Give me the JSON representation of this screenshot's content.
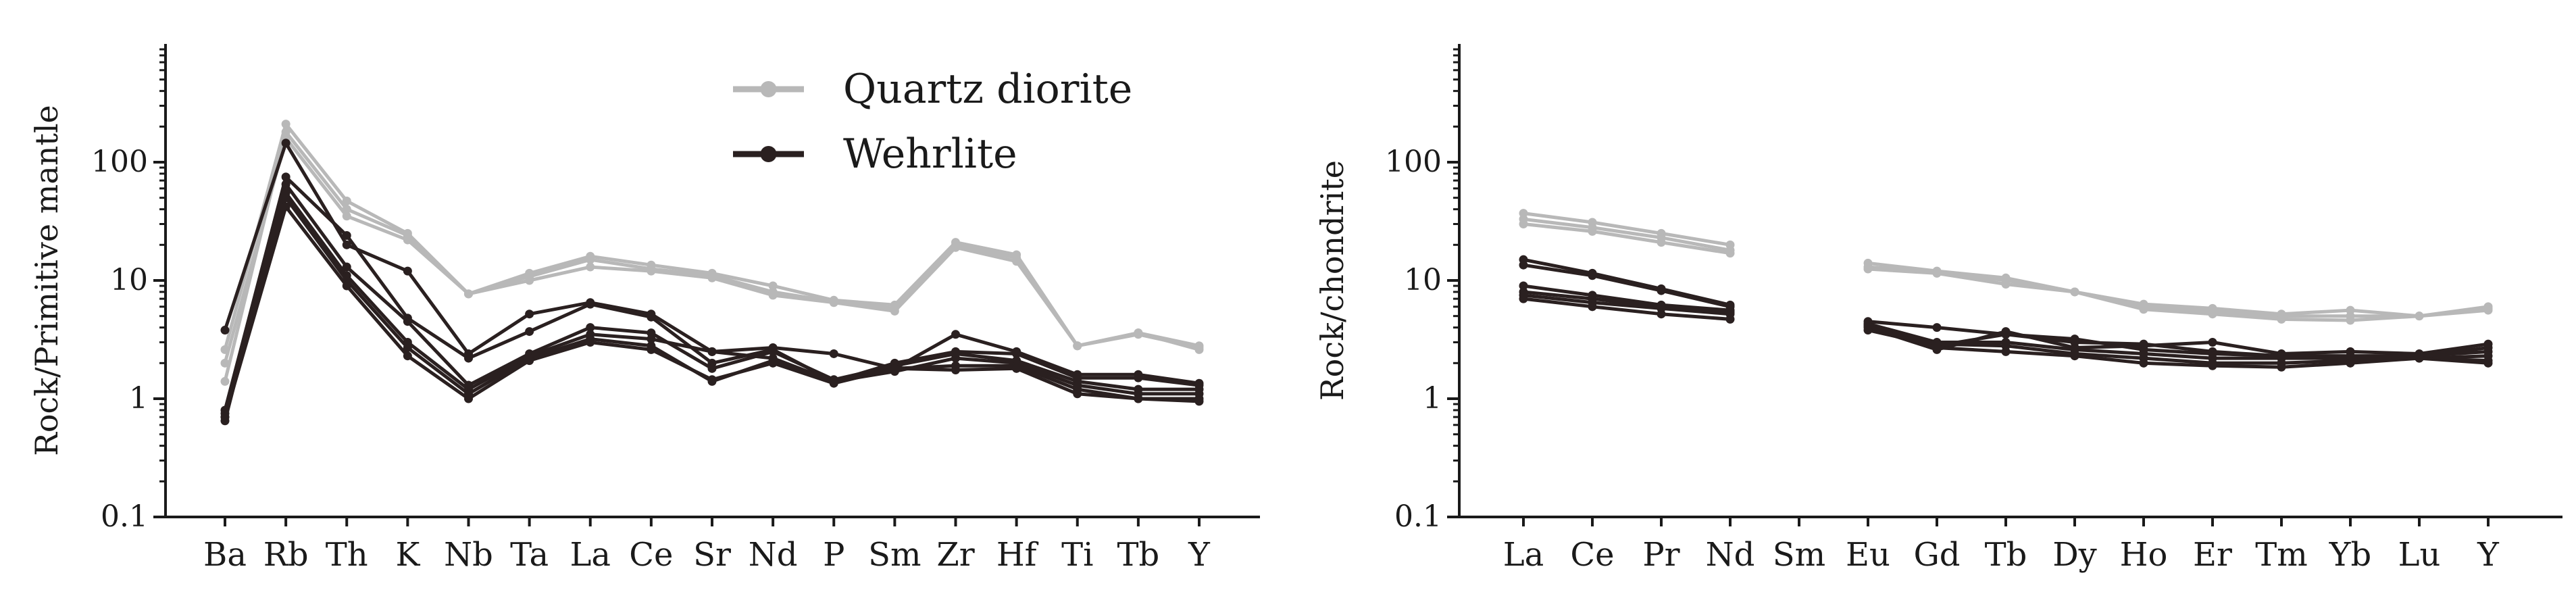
{
  "chart_data": [
    {
      "type": "line",
      "ylabel": "Rock/Primitive mantle",
      "yscale": "log",
      "ylim": [
        0.1,
        1000
      ],
      "yticks": [
        "0.1",
        "1",
        "10",
        "100"
      ],
      "categories": [
        "Ba",
        "Rb",
        "Th",
        "K",
        "Nb",
        "Ta",
        "La",
        "Ce",
        "Sr",
        "Nd",
        "P",
        "Sm",
        "Zr",
        "Hf",
        "Ti",
        "Tb",
        "Y"
      ],
      "legend": [
        {
          "name": "Quartz diorite",
          "color": "#b8b8b8"
        },
        {
          "name": "Wehrlite",
          "color": "#2a2020"
        }
      ],
      "groups": [
        {
          "name": "Quartz diorite",
          "color": "#b8b8b8",
          "samples": [
            [
              2.6,
              210,
              47,
              25,
              7.7,
              11.5,
              16,
              13.5,
              11.5,
              9.0,
              6.8,
              6.2,
              21,
              16.5,
              2.8,
              3.6,
              2.8
            ],
            [
              1.4,
              180,
              40,
              24,
              7.7,
              10.8,
              15,
              12.5,
              11.0,
              8.0,
              6.6,
              5.8,
              20,
              15.5,
              2.8,
              3.6,
              2.6
            ],
            [
              2.0,
              160,
              35,
              22,
              7.7,
              10.0,
              13,
              12.0,
              10.5,
              7.5,
              6.5,
              5.5,
              19,
              14.5,
              2.8,
              3.5,
              2.7
            ]
          ]
        },
        {
          "name": "Wehrlite",
          "color": "#2a2020",
          "samples": [
            [
              3.8,
              145,
              20,
              12,
              2.4,
              5.2,
              6.5,
              5.2,
              2.5,
              2.7,
              2.4,
              1.8,
              3.5,
              2.5,
              1.6,
              1.6,
              1.35
            ],
            [
              0.8,
              75,
              24,
              4.8,
              2.2,
              3.7,
              6.3,
              4.9,
              2.0,
              2.6,
              1.4,
              2.0,
              2.5,
              2.4,
              1.5,
              1.5,
              1.3
            ],
            [
              0.65,
              65,
              13,
              4.5,
              1.3,
              2.4,
              4.0,
              3.6,
              1.8,
              2.5,
              1.45,
              1.9,
              2.4,
              2.1,
              1.4,
              1.2,
              1.2
            ],
            [
              0.75,
              55,
              11,
              3.0,
              1.2,
              2.3,
              3.5,
              3.2,
              2.5,
              2.2,
              1.4,
              1.7,
              2.2,
              2.0,
              1.3,
              1.1,
              1.1
            ],
            [
              0.7,
              50,
              10,
              2.7,
              1.1,
              2.2,
              3.2,
              2.8,
              1.4,
              2.1,
              1.4,
              1.8,
              1.9,
              1.9,
              1.2,
              1.0,
              1.0
            ],
            [
              0.7,
              42,
              9,
              2.3,
              1.0,
              2.1,
              3.0,
              2.6,
              1.45,
              2.0,
              1.35,
              1.8,
              1.75,
              1.8,
              1.1,
              1.0,
              0.95
            ]
          ]
        }
      ]
    },
    {
      "type": "line",
      "ylabel": "Rock/chondrite",
      "yscale": "log",
      "ylim": [
        0.1,
        1000
      ],
      "yticks": [
        "0.1",
        "1",
        "10",
        "100"
      ],
      "categories": [
        "La",
        "Ce",
        "Pr",
        "Nd",
        "Sm",
        "Eu",
        "Gd",
        "Tb",
        "Dy",
        "Ho",
        "Er",
        "Tm",
        "Yb",
        "Lu",
        "Y"
      ],
      "groups": [
        {
          "name": "Quartz diorite",
          "color": "#b8b8b8",
          "samples": [
            [
              37,
              31,
              25,
              20,
              null,
              14,
              12,
              10.5,
              8.0,
              6.3,
              5.8,
              5.2,
              5.6,
              5.0,
              6.0
            ],
            [
              33,
              28,
              23,
              18,
              null,
              13,
              11.8,
              10.0,
              8.0,
              6.0,
              5.5,
              5.0,
              5.0,
              5.0,
              5.8
            ],
            [
              30,
              26,
              21,
              17,
              null,
              12.5,
              11.5,
              9.3,
              8.0,
              5.7,
              5.2,
              4.7,
              4.6,
              5.0,
              5.6
            ]
          ]
        },
        {
          "name": "Wehrlite",
          "color": "#2a2020",
          "samples": [
            [
              15,
              11.5,
              8.5,
              6.2,
              null,
              4.0,
              2.6,
              3.7,
              2.7,
              2.8,
              3.0,
              2.4,
              2.5,
              2.4,
              2.9
            ],
            [
              13.5,
              11.0,
              8.2,
              6.0,
              null,
              3.8,
              2.8,
              3.5,
              3.2,
              2.6,
              2.4,
              2.3,
              2.3,
              2.3,
              2.7
            ],
            [
              9.0,
              7.5,
              6.2,
              5.6,
              null,
              4.5,
              4.0,
              3.5,
              3.0,
              2.9,
              2.5,
              2.3,
              2.3,
              2.3,
              2.5
            ],
            [
              8.0,
              7.0,
              6.0,
              5.4,
              null,
              4.3,
              3.0,
              3.0,
              2.6,
              2.4,
              2.2,
              2.2,
              2.2,
              2.2,
              2.3
            ],
            [
              7.5,
              6.5,
              5.8,
              5.2,
              null,
              4.2,
              2.9,
              2.8,
              2.4,
              2.2,
              2.0,
              2.0,
              2.1,
              2.2,
              2.1
            ],
            [
              7.0,
              6.0,
              5.2,
              4.7,
              null,
              4.1,
              2.7,
              2.5,
              2.3,
              2.0,
              1.9,
              1.85,
              2.0,
              2.2,
              2.0
            ]
          ]
        }
      ]
    }
  ]
}
